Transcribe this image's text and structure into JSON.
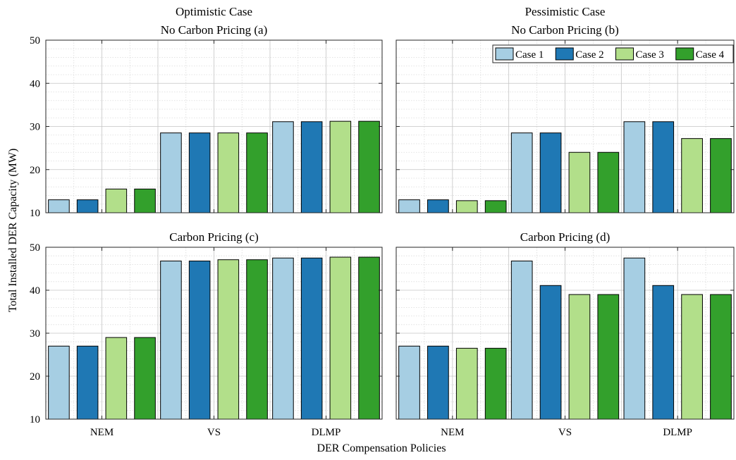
{
  "figure": {
    "ylabel": "Total Installed DER Capacity (MW)",
    "xlabel": "DER Compensation Policies"
  },
  "colors": {
    "Case 1": "#a6cee3",
    "Case 2": "#1f78b4",
    "Case 3": "#b2df8a",
    "Case 4": "#33a02c"
  },
  "legend": {
    "placement": "top-right of panel (b)",
    "entries": [
      "Case 1",
      "Case 2",
      "Case 3",
      "Case 4"
    ]
  },
  "chart_data": [
    {
      "id": "a",
      "type": "bar",
      "title_lines": [
        "Optimistic Case",
        "No Carbon Pricing (a)"
      ],
      "categories": [
        "NEM",
        "VS",
        "DLMP"
      ],
      "ylim": [
        10,
        50
      ],
      "yticks": [
        10,
        20,
        30,
        40,
        50
      ],
      "grid": true,
      "series": [
        {
          "name": "Case 1",
          "values": [
            13.0,
            28.5,
            31.1
          ]
        },
        {
          "name": "Case 2",
          "values": [
            13.0,
            28.5,
            31.1
          ]
        },
        {
          "name": "Case 3",
          "values": [
            15.5,
            28.5,
            31.2
          ]
        },
        {
          "name": "Case 4",
          "values": [
            15.5,
            28.5,
            31.2
          ]
        }
      ]
    },
    {
      "id": "b",
      "type": "bar",
      "title_lines": [
        "Pessimistic Case",
        "No Carbon Pricing (b)"
      ],
      "categories": [
        "NEM",
        "VS",
        "DLMP"
      ],
      "ylim": [
        10,
        50
      ],
      "yticks": [
        10,
        20,
        30,
        40,
        50
      ],
      "grid": true,
      "series": [
        {
          "name": "Case 1",
          "values": [
            13.0,
            28.5,
            31.1
          ]
        },
        {
          "name": "Case 2",
          "values": [
            13.0,
            28.5,
            31.1
          ]
        },
        {
          "name": "Case 3",
          "values": [
            12.8,
            24.0,
            27.2
          ]
        },
        {
          "name": "Case 4",
          "values": [
            12.8,
            24.0,
            27.2
          ]
        }
      ]
    },
    {
      "id": "c",
      "type": "bar",
      "title_lines": [
        "Carbon Pricing (c)"
      ],
      "categories": [
        "NEM",
        "VS",
        "DLMP"
      ],
      "ylim": [
        10,
        50
      ],
      "yticks": [
        10,
        20,
        30,
        40,
        50
      ],
      "grid": true,
      "series": [
        {
          "name": "Case 1",
          "values": [
            27.0,
            46.8,
            47.5
          ]
        },
        {
          "name": "Case 2",
          "values": [
            27.0,
            46.8,
            47.5
          ]
        },
        {
          "name": "Case 3",
          "values": [
            29.0,
            47.1,
            47.7
          ]
        },
        {
          "name": "Case 4",
          "values": [
            29.0,
            47.1,
            47.7
          ]
        }
      ]
    },
    {
      "id": "d",
      "type": "bar",
      "title_lines": [
        "Carbon Pricing (d)"
      ],
      "categories": [
        "NEM",
        "VS",
        "DLMP"
      ],
      "ylim": [
        10,
        50
      ],
      "yticks": [
        10,
        20,
        30,
        40,
        50
      ],
      "grid": true,
      "series": [
        {
          "name": "Case 1",
          "values": [
            27.0,
            46.8,
            47.5
          ]
        },
        {
          "name": "Case 2",
          "values": [
            27.0,
            41.1,
            41.1
          ]
        },
        {
          "name": "Case 3",
          "values": [
            26.5,
            39.0,
            39.0
          ]
        },
        {
          "name": "Case 4",
          "values": [
            26.5,
            39.0,
            39.0
          ]
        }
      ]
    }
  ]
}
